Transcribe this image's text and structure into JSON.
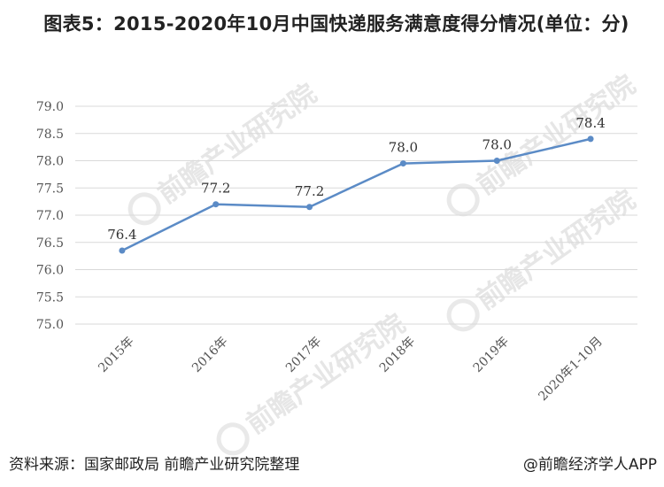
{
  "title": "图表5：2015-2020年10月中国快递服务满意度得分情况(单位：分)",
  "footer": {
    "source": "资料来源：国家邮政局 前瞻产业研究院整理",
    "credit": "@前瞻经济学人APP"
  },
  "watermark": {
    "name": "前瞻产业研究院"
  },
  "colors": {
    "line": "#5b8bc6",
    "grid": "#d9d9d9"
  },
  "chart_data": {
    "type": "line",
    "title": "图表5：2015-2020年10月中国快递服务满意度得分情况(单位：分)",
    "categories": [
      "2015年",
      "2016年",
      "2017年",
      "2018年",
      "2019年",
      "2020年1-10月"
    ],
    "values": [
      76.35,
      77.2,
      77.15,
      77.95,
      78.0,
      78.4
    ],
    "data_labels": [
      "76.4",
      "77.2",
      "77.2",
      "78.0",
      "78.0",
      "78.4"
    ],
    "xlabel": "",
    "ylabel": "",
    "ylim": [
      75.0,
      79.0
    ],
    "yticks": [
      "75.0",
      "75.5",
      "76.0",
      "76.5",
      "77.0",
      "77.5",
      "78.0",
      "78.5",
      "79.0"
    ],
    "grid": true,
    "legend": "none"
  }
}
